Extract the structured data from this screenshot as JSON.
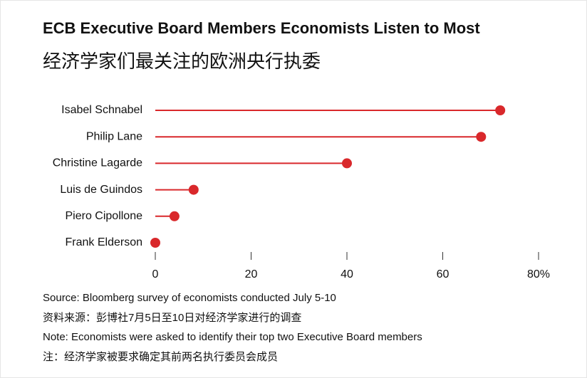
{
  "chart_data": {
    "type": "lollipop",
    "title": "ECB Executive Board Members Economists Listen to Most",
    "subtitle": "经济学家们最关注的欧洲央行执委",
    "categories": [
      "Isabel Schnabel",
      "Philip Lane",
      "Christine Lagarde",
      "Luis de Guindos",
      "Piero Cipollone",
      "Frank Elderson"
    ],
    "values": [
      72,
      68,
      40,
      8,
      4,
      0
    ],
    "color": "#d9282b",
    "xlim": [
      0,
      80
    ],
    "xticks": [
      0,
      20,
      40,
      60,
      {
        "value": 80,
        "label": "80%"
      }
    ],
    "source": "Source: Bloomberg survey of economists conducted July 5-10",
    "source_zh": "资料来源：彭博社7月5日至10日对经济学家进行的调查",
    "note": "Note: Economists were asked to identify their top two Executive Board members",
    "note_zh": "注：经济学家被要求确定其前两名执行委员会成员"
  }
}
